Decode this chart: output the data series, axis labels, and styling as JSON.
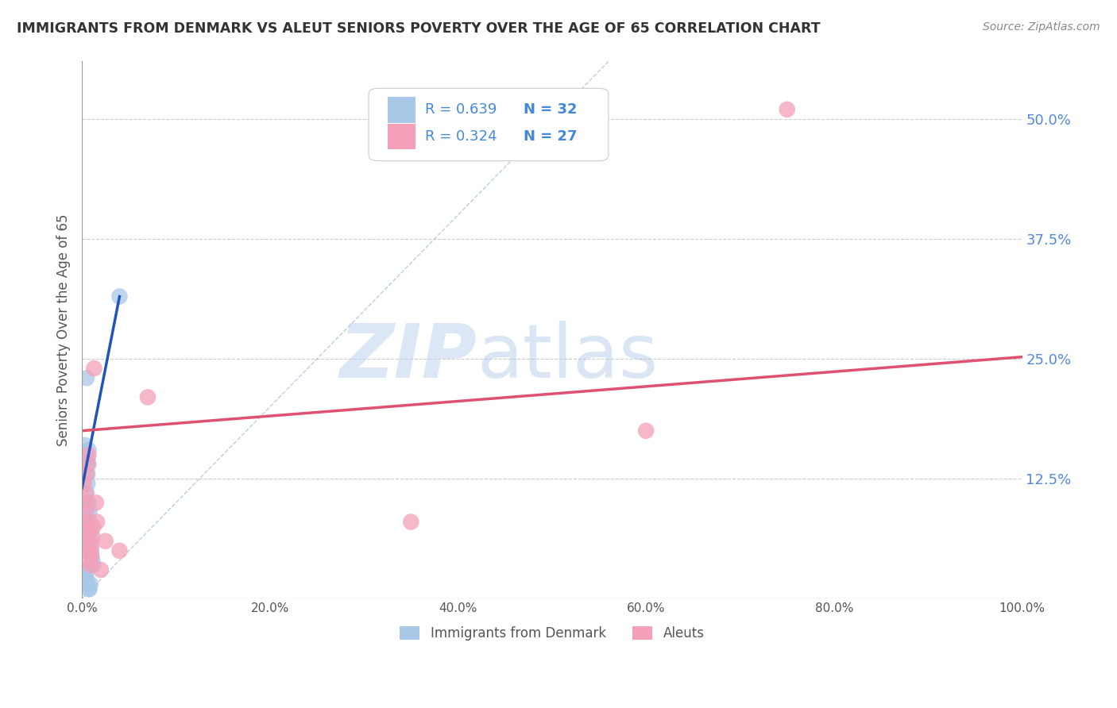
{
  "title": "IMMIGRANTS FROM DENMARK VS ALEUT SENIORS POVERTY OVER THE AGE OF 65 CORRELATION CHART",
  "source": "Source: ZipAtlas.com",
  "ylabel": "Seniors Poverty Over the Age of 65",
  "legend_label1": "Immigrants from Denmark",
  "legend_label2": "Aleuts",
  "legend_r1": "R = 0.639",
  "legend_n1": "N = 32",
  "legend_r2": "R = 0.324",
  "legend_n2": "N = 27",
  "color_blue": "#a8c8e8",
  "color_pink": "#f4a0b8",
  "color_blue_line": "#2255bb",
  "color_pink_line": "#e05070",
  "color_legend_text": "#4488dd",
  "color_right_labels": "#5588dd",
  "xlim": [
    0.0,
    1.0
  ],
  "ylim": [
    0.0,
    0.56
  ],
  "yticks_right": [
    0.125,
    0.25,
    0.375,
    0.5
  ],
  "ytick_labels_right": [
    "12.5%",
    "25.0%",
    "37.5%",
    "50.0%"
  ],
  "xtick_labels": [
    "0.0%",
    "20.0%",
    "40.0%",
    "60.0%",
    "80.0%",
    "100.0%"
  ],
  "xtick_vals": [
    0.0,
    0.2,
    0.4,
    0.6,
    0.8,
    1.0
  ],
  "watermark_zip": "ZIP",
  "watermark_atlas": "atlas",
  "blue_line_x": [
    0.0,
    0.04
  ],
  "blue_line_y": [
    0.115,
    0.315
  ],
  "pink_line_x": [
    0.0,
    1.0
  ],
  "pink_line_y": [
    0.175,
    0.252
  ],
  "ref_line_x": [
    0.0,
    0.56
  ],
  "ref_line_y": [
    0.0,
    0.56
  ],
  "figsize": [
    14.06,
    8.92
  ],
  "dpi": 100
}
